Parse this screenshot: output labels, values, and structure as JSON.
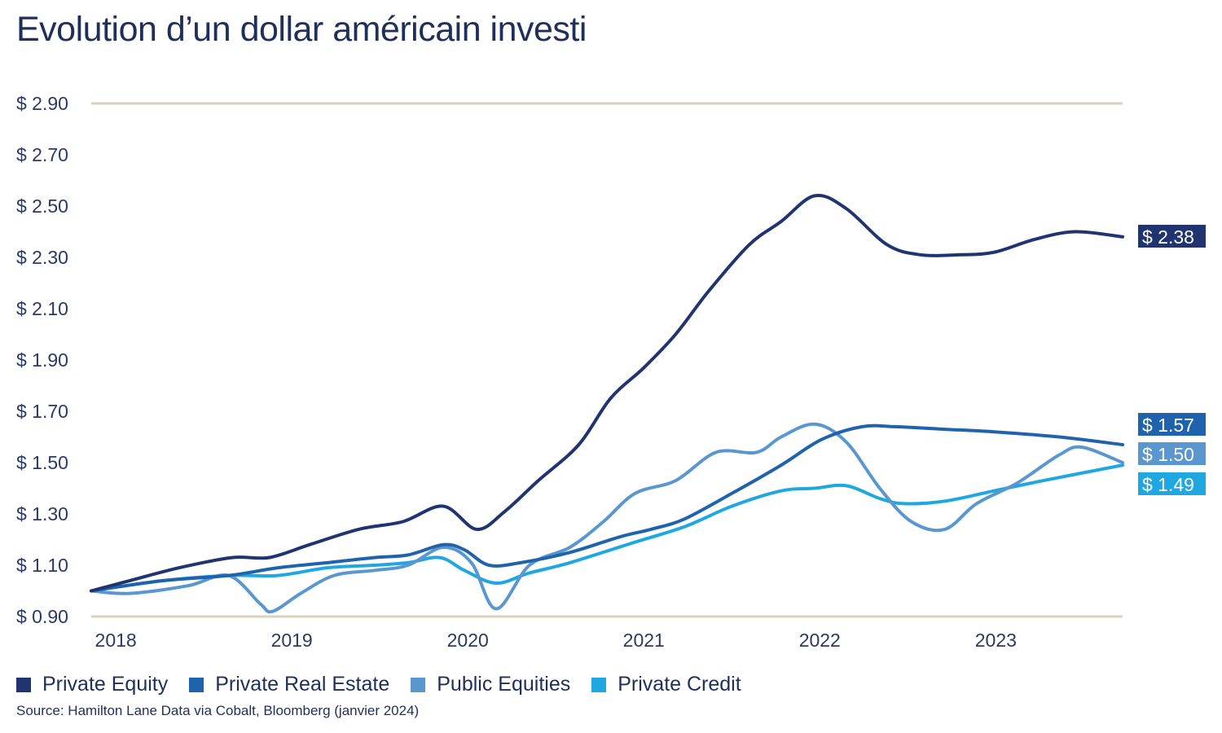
{
  "title": "Evolution d’un dollar américain investi",
  "source": "Source: Hamilton Lane Data via Cobalt, Bloomberg (janvier 2024)",
  "chart_data": {
    "type": "line",
    "title": "Evolution d’un dollar américain investi",
    "xlabel": "",
    "ylabel": "",
    "xlim": [
      2017.93,
      2023.79
    ],
    "ylim": [
      0.9,
      2.9
    ],
    "grid": false,
    "yticks": [
      0.9,
      1.1,
      1.3,
      1.5,
      1.7,
      1.9,
      2.1,
      2.3,
      2.5,
      2.7,
      2.9
    ],
    "ytick_labels": [
      "$ 0.90",
      "$ 1.10",
      "$ 1.30",
      "$ 1.50",
      "$ 1.70",
      "$ 1.90",
      "$ 2.10",
      "$ 2.30",
      "$ 2.50",
      "$ 2.70",
      "$ 2.90"
    ],
    "xticks": [
      2018,
      2019,
      2020,
      2021,
      2022,
      2023
    ],
    "xtick_labels": [
      "2018",
      "2019",
      "2020",
      "2021",
      "2022",
      "2023"
    ],
    "legend_position": "bottom-left",
    "series": [
      {
        "name": "Private Equity",
        "color": "#1f3470",
        "end_label": "$ 2.38",
        "points": [
          [
            2017.93,
            1.0
          ],
          [
            2018.15,
            1.04
          ],
          [
            2018.43,
            1.09
          ],
          [
            2018.73,
            1.13
          ],
          [
            2018.94,
            1.13
          ],
          [
            2019.17,
            1.18
          ],
          [
            2019.45,
            1.24
          ],
          [
            2019.7,
            1.27
          ],
          [
            2019.93,
            1.33
          ],
          [
            2020.12,
            1.24
          ],
          [
            2020.28,
            1.31
          ],
          [
            2020.47,
            1.43
          ],
          [
            2020.7,
            1.57
          ],
          [
            2020.88,
            1.75
          ],
          [
            2021.07,
            1.87
          ],
          [
            2021.25,
            2.0
          ],
          [
            2021.44,
            2.17
          ],
          [
            2021.67,
            2.35
          ],
          [
            2021.85,
            2.44
          ],
          [
            2022.04,
            2.54
          ],
          [
            2022.22,
            2.49
          ],
          [
            2022.45,
            2.35
          ],
          [
            2022.64,
            2.31
          ],
          [
            2022.87,
            2.31
          ],
          [
            2023.06,
            2.32
          ],
          [
            2023.29,
            2.37
          ],
          [
            2023.52,
            2.4
          ],
          [
            2023.79,
            2.38
          ]
        ]
      },
      {
        "name": "Private Real Estate",
        "color": "#1f63ad",
        "end_label": "$ 1.57",
        "points": [
          [
            2017.93,
            1.0
          ],
          [
            2018.34,
            1.04
          ],
          [
            2018.71,
            1.06
          ],
          [
            2018.99,
            1.09
          ],
          [
            2019.27,
            1.11
          ],
          [
            2019.54,
            1.13
          ],
          [
            2019.73,
            1.14
          ],
          [
            2019.93,
            1.18
          ],
          [
            2020.05,
            1.16
          ],
          [
            2020.19,
            1.1
          ],
          [
            2020.37,
            1.11
          ],
          [
            2020.65,
            1.15
          ],
          [
            2020.93,
            1.21
          ],
          [
            2021.11,
            1.24
          ],
          [
            2021.3,
            1.28
          ],
          [
            2021.57,
            1.38
          ],
          [
            2021.85,
            1.49
          ],
          [
            2022.08,
            1.59
          ],
          [
            2022.31,
            1.64
          ],
          [
            2022.5,
            1.64
          ],
          [
            2022.78,
            1.63
          ],
          [
            2023.06,
            1.62
          ],
          [
            2023.43,
            1.6
          ],
          [
            2023.79,
            1.57
          ]
        ]
      },
      {
        "name": "Public Equities",
        "color": "#5a97cf",
        "end_label": "$ 1.50",
        "points": [
          [
            2017.93,
            1.0
          ],
          [
            2018.15,
            0.99
          ],
          [
            2018.48,
            1.02
          ],
          [
            2018.71,
            1.06
          ],
          [
            2018.89,
            0.95
          ],
          [
            2018.96,
            0.92
          ],
          [
            2019.12,
            0.99
          ],
          [
            2019.31,
            1.06
          ],
          [
            2019.54,
            1.08
          ],
          [
            2019.73,
            1.1
          ],
          [
            2019.93,
            1.17
          ],
          [
            2020.09,
            1.11
          ],
          [
            2020.23,
            0.93
          ],
          [
            2020.42,
            1.1
          ],
          [
            2020.65,
            1.17
          ],
          [
            2020.84,
            1.27
          ],
          [
            2021.02,
            1.38
          ],
          [
            2021.25,
            1.43
          ],
          [
            2021.48,
            1.54
          ],
          [
            2021.71,
            1.54
          ],
          [
            2021.85,
            1.6
          ],
          [
            2022.04,
            1.65
          ],
          [
            2022.22,
            1.58
          ],
          [
            2022.41,
            1.4
          ],
          [
            2022.59,
            1.27
          ],
          [
            2022.78,
            1.24
          ],
          [
            2022.96,
            1.34
          ],
          [
            2023.19,
            1.42
          ],
          [
            2023.43,
            1.53
          ],
          [
            2023.56,
            1.56
          ],
          [
            2023.79,
            1.5
          ]
        ]
      },
      {
        "name": "Private Credit",
        "color": "#1ea7e1",
        "end_label": "$ 1.49",
        "points": [
          [
            2017.93,
            1.0
          ],
          [
            2018.34,
            1.04
          ],
          [
            2018.71,
            1.06
          ],
          [
            2018.99,
            1.06
          ],
          [
            2019.27,
            1.09
          ],
          [
            2019.54,
            1.1
          ],
          [
            2019.73,
            1.11
          ],
          [
            2019.91,
            1.13
          ],
          [
            2020.05,
            1.08
          ],
          [
            2020.23,
            1.03
          ],
          [
            2020.42,
            1.07
          ],
          [
            2020.65,
            1.11
          ],
          [
            2021.02,
            1.19
          ],
          [
            2021.3,
            1.25
          ],
          [
            2021.57,
            1.33
          ],
          [
            2021.85,
            1.39
          ],
          [
            2022.04,
            1.4
          ],
          [
            2022.22,
            1.41
          ],
          [
            2022.41,
            1.36
          ],
          [
            2022.55,
            1.34
          ],
          [
            2022.78,
            1.35
          ],
          [
            2023.06,
            1.39
          ],
          [
            2023.34,
            1.43
          ],
          [
            2023.79,
            1.49
          ]
        ]
      }
    ]
  }
}
